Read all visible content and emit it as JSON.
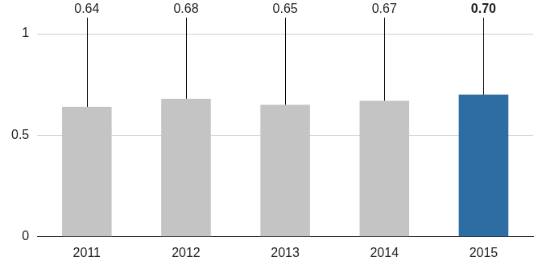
{
  "chart_data": {
    "type": "bar",
    "categories": [
      "2011",
      "2012",
      "2013",
      "2014",
      "2015"
    ],
    "values": [
      0.64,
      0.68,
      0.65,
      0.67,
      0.7
    ],
    "value_labels": [
      "0.64",
      "0.68",
      "0.65",
      "0.67",
      "0.70"
    ],
    "colors": [
      "#c4c4c4",
      "#c4c4c4",
      "#c4c4c4",
      "#c4c4c4",
      "#2e6da4"
    ],
    "ylim": [
      0,
      1
    ],
    "yticks": [
      0,
      0.5,
      1
    ],
    "grid": true,
    "data_labels": true
  }
}
